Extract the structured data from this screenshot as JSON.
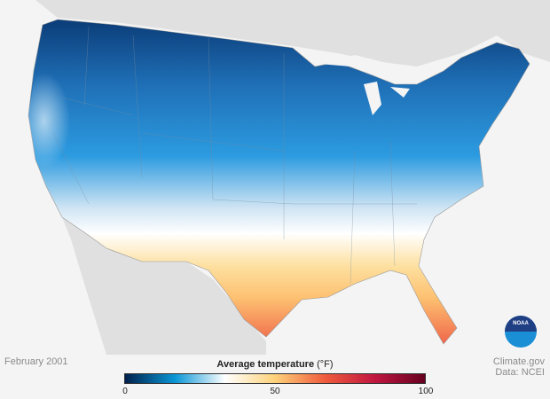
{
  "map": {
    "date_label": "February 2001",
    "legend": {
      "title": "Average temperature",
      "unit": "(°F)",
      "min": 0,
      "mid": 50,
      "max": 100,
      "tick_labels": [
        "0",
        "50",
        "100"
      ],
      "colors": [
        "#00204c",
        "#0a96d6",
        "#ffffff",
        "#fdd27a",
        "#ef5b3d",
        "#c01640",
        "#67001f"
      ]
    },
    "credit": {
      "source": "Climate.gov",
      "data": "Data: NCEI"
    },
    "logo": "NOAA"
  }
}
